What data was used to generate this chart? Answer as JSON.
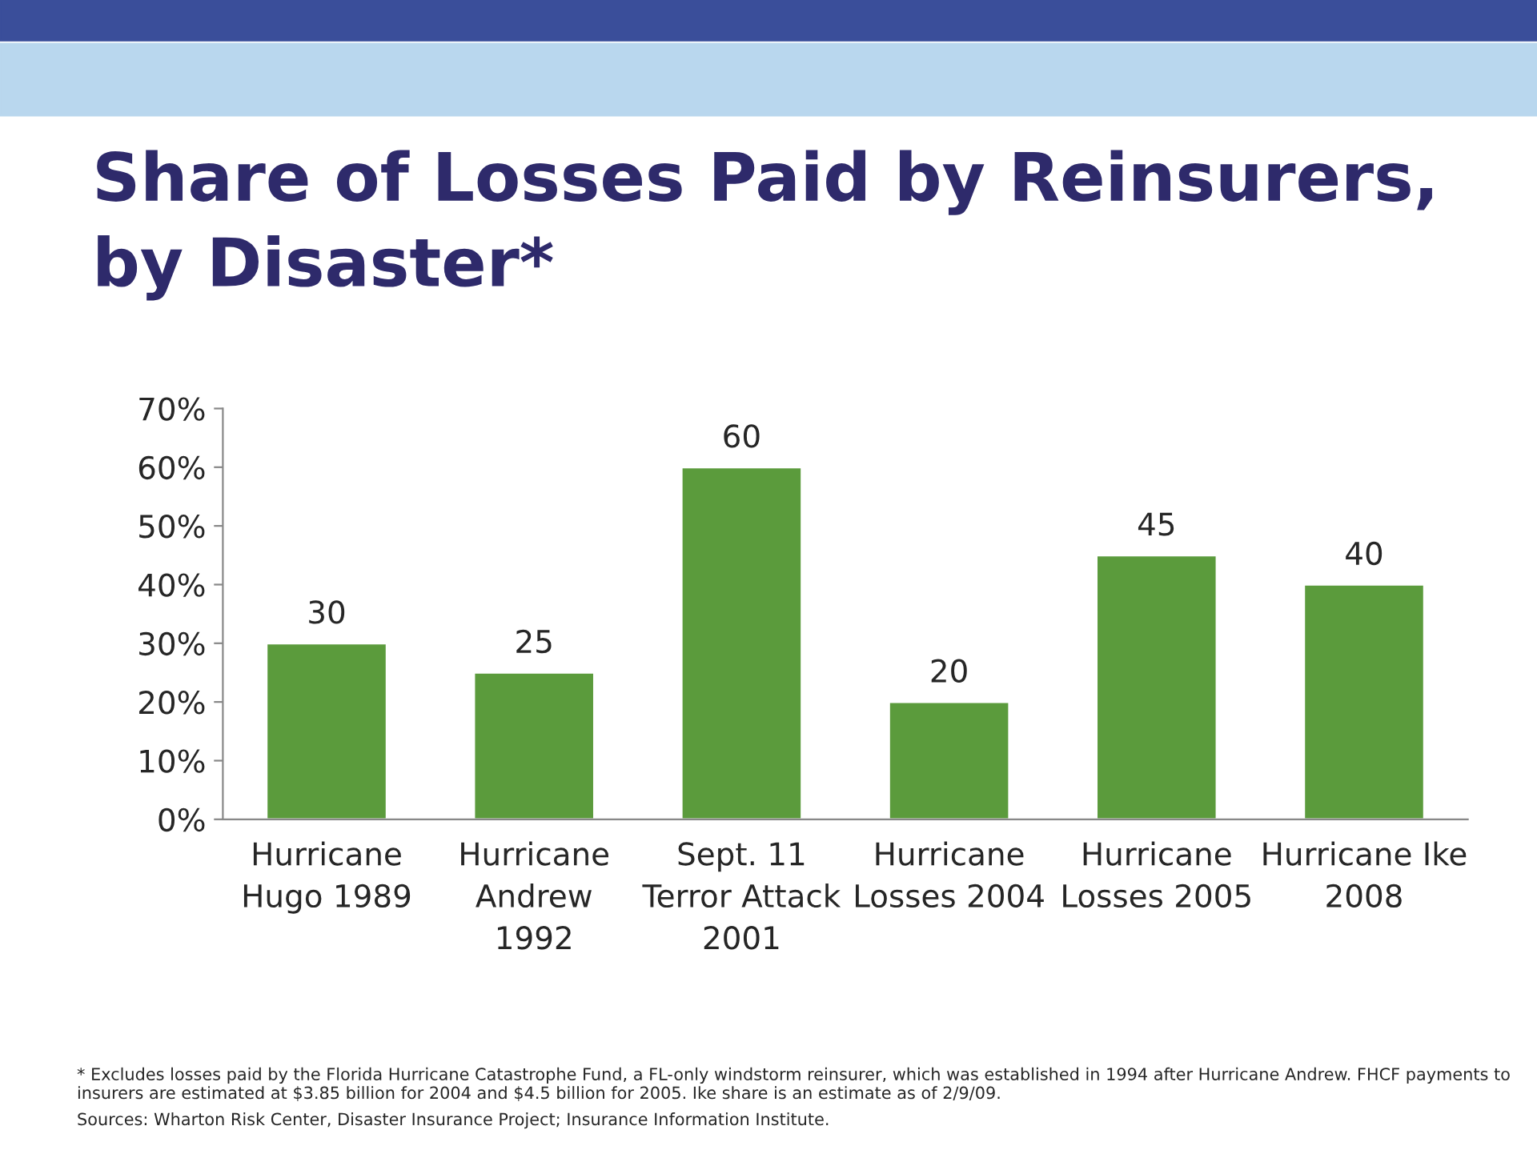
{
  "chart_data": {
    "type": "bar",
    "title": "Share of Losses Paid by Reinsurers, by Disaster*",
    "categories": [
      "Hurricane\nHugo 1989",
      "Hurricane\nAndrew\n1992",
      "Sept. 11\nTerror Attack\n2001",
      "Hurricane\nLosses 2004",
      "Hurricane\nLosses 2005",
      "Hurricane Ike\n2008"
    ],
    "values": [
      30,
      25,
      60,
      20,
      45,
      40
    ],
    "color": "#5b9b3c",
    "ylim": [
      0,
      70
    ],
    "yticks": [
      {
        "value": 0,
        "label": "0%"
      },
      {
        "value": 10,
        "label": "10%"
      },
      {
        "value": 20,
        "label": "20%"
      },
      {
        "value": 30,
        "label": "30%"
      },
      {
        "value": 40,
        "label": "40%"
      },
      {
        "value": 50,
        "label": "50%"
      },
      {
        "value": 60,
        "label": "60%"
      },
      {
        "value": 70,
        "label": "70%"
      }
    ],
    "data_labels": true,
    "grid": false,
    "legend": false,
    "annotations": [
      "* Excludes losses paid by the Florida Hurricane Catastrophe Fund, a FL-only windstorm reinsurer, which was established in 1994 after Hurricane Andrew. FHCF payments to insurers are estimated at $3.85 billion for 2004 and $4.5 billion for 2005. Ike share is an estimate as of 2/9/09.",
      "Sources: Wharton Risk Center, Disaster Insurance Project; Insurance Information Institute."
    ]
  }
}
